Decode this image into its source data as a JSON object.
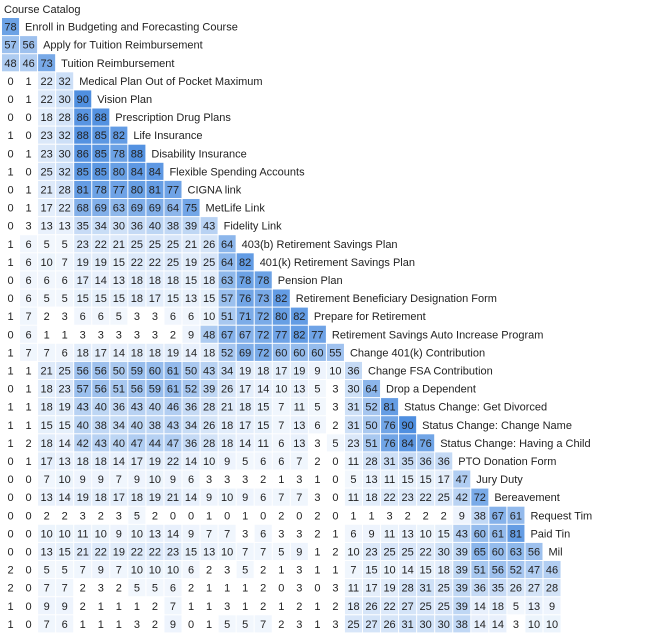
{
  "chart_data": {
    "type": "heatmap",
    "title": "Course Catalog",
    "xlabel": "",
    "ylabel": "",
    "colors": {
      "low": "#f5f9fe",
      "high": "#4f8fe0",
      "text": "#222222",
      "grid": "#ffffff"
    },
    "rows": [
      {
        "label": "Enroll in Budgeting and Forecasting Course",
        "values": [
          78
        ]
      },
      {
        "label": "Apply for Tuition Reimbursement",
        "values": [
          57,
          56
        ]
      },
      {
        "label": "Tuition Reimbursement",
        "values": [
          48,
          46,
          73
        ]
      },
      {
        "label": "Medical Plan Out of Pocket Maximum",
        "values": [
          0,
          1,
          22,
          32
        ]
      },
      {
        "label": "Vision Plan",
        "values": [
          0,
          1,
          22,
          30,
          90
        ]
      },
      {
        "label": "Prescription Drug Plans",
        "values": [
          0,
          0,
          18,
          28,
          86,
          88
        ]
      },
      {
        "label": "Life Insurance",
        "values": [
          1,
          0,
          23,
          32,
          88,
          85,
          82
        ]
      },
      {
        "label": "Disability Insurance",
        "values": [
          0,
          1,
          23,
          30,
          86,
          85,
          78,
          88
        ]
      },
      {
        "label": "Flexible Spending Accounts",
        "values": [
          1,
          0,
          25,
          32,
          85,
          85,
          80,
          84,
          84
        ]
      },
      {
        "label": "CIGNA link",
        "values": [
          0,
          1,
          21,
          28,
          81,
          78,
          77,
          80,
          81,
          77
        ]
      },
      {
        "label": "MetLife Link",
        "values": [
          0,
          1,
          17,
          22,
          68,
          69,
          63,
          69,
          69,
          64,
          75
        ]
      },
      {
        "label": "Fidelity Link",
        "values": [
          0,
          3,
          13,
          13,
          35,
          34,
          30,
          36,
          40,
          38,
          39,
          43
        ]
      },
      {
        "label": "403(b) Retirement Savings Plan",
        "values": [
          1,
          6,
          5,
          5,
          23,
          22,
          21,
          25,
          25,
          25,
          21,
          26,
          64
        ]
      },
      {
        "label": "401(k) Retirement Savings Plan",
        "values": [
          1,
          6,
          10,
          7,
          19,
          19,
          15,
          22,
          22,
          25,
          19,
          25,
          64,
          82
        ]
      },
      {
        "label": "Pension Plan",
        "values": [
          0,
          6,
          6,
          6,
          17,
          14,
          13,
          18,
          18,
          18,
          15,
          18,
          63,
          78,
          78
        ]
      },
      {
        "label": "Retirement Beneficiary Designation Form",
        "values": [
          0,
          6,
          5,
          5,
          15,
          15,
          15,
          18,
          17,
          15,
          13,
          15,
          57,
          76,
          73,
          82
        ]
      },
      {
        "label": "Prepare for Retirement",
        "values": [
          1,
          7,
          2,
          3,
          6,
          6,
          5,
          3,
          3,
          6,
          6,
          10,
          51,
          71,
          72,
          80,
          82
        ]
      },
      {
        "label": "Retirement Savings Auto Increase Program",
        "values": [
          0,
          6,
          1,
          1,
          3,
          3,
          3,
          3,
          3,
          2,
          9,
          48,
          67,
          67,
          72,
          77,
          82,
          77
        ]
      },
      {
        "label": "Change 401(k) Contribution",
        "values": [
          1,
          7,
          7,
          6,
          18,
          17,
          14,
          18,
          18,
          19,
          14,
          18,
          52,
          69,
          72,
          60,
          60,
          60,
          55
        ]
      },
      {
        "label": "Change FSA Contribution",
        "values": [
          1,
          1,
          21,
          25,
          56,
          56,
          50,
          59,
          60,
          61,
          50,
          43,
          34,
          19,
          18,
          17,
          19,
          9,
          10,
          36
        ]
      },
      {
        "label": "Drop a Dependent",
        "values": [
          0,
          1,
          18,
          23,
          57,
          56,
          51,
          56,
          59,
          61,
          52,
          39,
          26,
          17,
          14,
          10,
          13,
          5,
          3,
          30,
          64
        ]
      },
      {
        "label": "Status Change: Get Divorced",
        "values": [
          1,
          1,
          18,
          19,
          43,
          40,
          36,
          43,
          40,
          46,
          36,
          28,
          21,
          18,
          15,
          7,
          11,
          5,
          3,
          31,
          52,
          81
        ]
      },
      {
        "label": "Status Change: Change Name",
        "values": [
          1,
          1,
          15,
          15,
          40,
          38,
          34,
          40,
          38,
          43,
          34,
          26,
          18,
          17,
          15,
          7,
          13,
          6,
          2,
          31,
          50,
          76,
          90
        ]
      },
      {
        "label": "Status Change: Having a Child",
        "values": [
          1,
          2,
          18,
          14,
          42,
          43,
          40,
          47,
          44,
          47,
          36,
          28,
          18,
          14,
          11,
          6,
          13,
          3,
          5,
          23,
          51,
          76,
          84,
          76
        ]
      },
      {
        "label": "PTO Donation Form",
        "values": [
          0,
          1,
          17,
          13,
          18,
          18,
          14,
          17,
          19,
          22,
          14,
          10,
          9,
          5,
          6,
          6,
          7,
          2,
          0,
          11,
          28,
          31,
          35,
          36,
          36
        ]
      },
      {
        "label": "Jury Duty",
        "values": [
          0,
          0,
          7,
          10,
          9,
          9,
          7,
          9,
          10,
          9,
          6,
          3,
          3,
          3,
          2,
          1,
          3,
          1,
          0,
          5,
          13,
          11,
          15,
          15,
          17,
          47
        ]
      },
      {
        "label": "Bereavement",
        "values": [
          0,
          0,
          13,
          14,
          19,
          18,
          17,
          18,
          19,
          21,
          14,
          9,
          10,
          9,
          6,
          7,
          7,
          3,
          0,
          11,
          18,
          22,
          23,
          22,
          25,
          42,
          72
        ]
      },
      {
        "label": "Request Tim",
        "values": [
          0,
          0,
          2,
          2,
          3,
          2,
          3,
          5,
          2,
          0,
          0,
          1,
          0,
          1,
          0,
          2,
          0,
          2,
          0,
          1,
          1,
          3,
          2,
          2,
          2,
          9,
          38,
          67,
          61
        ]
      },
      {
        "label": "Paid Tin",
        "values": [
          0,
          0,
          10,
          10,
          11,
          10,
          9,
          10,
          13,
          14,
          9,
          7,
          7,
          3,
          6,
          3,
          3,
          2,
          1,
          6,
          9,
          11,
          13,
          10,
          15,
          43,
          60,
          61,
          81
        ]
      },
      {
        "label": "Mil",
        "values": [
          0,
          0,
          13,
          15,
          21,
          22,
          19,
          22,
          22,
          23,
          15,
          13,
          10,
          7,
          7,
          5,
          9,
          1,
          2,
          10,
          23,
          25,
          25,
          22,
          30,
          39,
          65,
          60,
          63,
          56
        ]
      },
      {
        "label": "",
        "values": [
          2,
          0,
          5,
          5,
          7,
          9,
          7,
          10,
          10,
          10,
          6,
          2,
          3,
          5,
          2,
          1,
          3,
          1,
          1,
          7,
          15,
          10,
          14,
          15,
          18,
          39,
          51,
          56,
          52,
          47,
          46
        ]
      },
      {
        "label": "",
        "values": [
          2,
          0,
          7,
          7,
          2,
          3,
          2,
          5,
          5,
          6,
          2,
          1,
          1,
          1,
          2,
          0,
          3,
          0,
          3,
          11,
          17,
          19,
          28,
          31,
          25,
          39,
          36,
          35,
          26,
          27,
          28
        ]
      },
      {
        "label": "",
        "values": [
          1,
          0,
          9,
          9,
          2,
          1,
          1,
          1,
          2,
          7,
          1,
          1,
          3,
          1,
          2,
          1,
          2,
          1,
          2,
          18,
          26,
          22,
          27,
          25,
          25,
          39,
          14,
          18,
          5,
          13,
          9
        ]
      },
      {
        "label": "",
        "values": [
          1,
          0,
          7,
          6,
          1,
          1,
          1,
          3,
          2,
          9,
          0,
          1,
          5,
          5,
          7,
          2,
          3,
          1,
          3,
          25,
          27,
          26,
          31,
          30,
          30,
          38,
          14,
          14,
          3,
          10,
          10
        ]
      }
    ]
  }
}
